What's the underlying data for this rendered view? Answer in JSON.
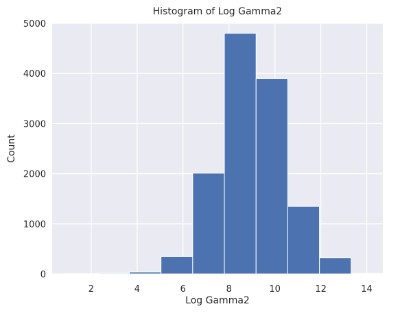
{
  "chart_data": {
    "type": "bar",
    "title": "Histogram of Log Gamma2",
    "xlabel": "Log Gamma2",
    "ylabel": "Count",
    "xlim": [
      0.3,
      14.7
    ],
    "ylim": [
      0,
      5000
    ],
    "x_ticks": [
      2,
      4,
      6,
      8,
      10,
      12,
      14
    ],
    "y_ticks": [
      0,
      1000,
      2000,
      3000,
      4000,
      5000
    ],
    "grid": true,
    "legend": "none",
    "bins": [
      {
        "x0": 0.9,
        "x1": 2.28,
        "value": 3
      },
      {
        "x0": 2.28,
        "x1": 3.66,
        "value": 15
      },
      {
        "x0": 3.66,
        "x1": 5.04,
        "value": 40
      },
      {
        "x0": 5.04,
        "x1": 6.42,
        "value": 350
      },
      {
        "x0": 6.42,
        "x1": 7.8,
        "value": 2010
      },
      {
        "x0": 7.8,
        "x1": 9.18,
        "value": 4800
      },
      {
        "x0": 9.18,
        "x1": 10.56,
        "value": 3900
      },
      {
        "x0": 10.56,
        "x1": 11.94,
        "value": 1350
      },
      {
        "x0": 11.94,
        "x1": 13.32,
        "value": 320
      },
      {
        "x0": 13.32,
        "x1": 14.7,
        "value": 10
      }
    ],
    "colors": {
      "background": "#eaeaf2",
      "grid": "#ffffff",
      "bar": "#4c72b0",
      "bar_edge": "#ffffff",
      "text": "#262626"
    }
  }
}
